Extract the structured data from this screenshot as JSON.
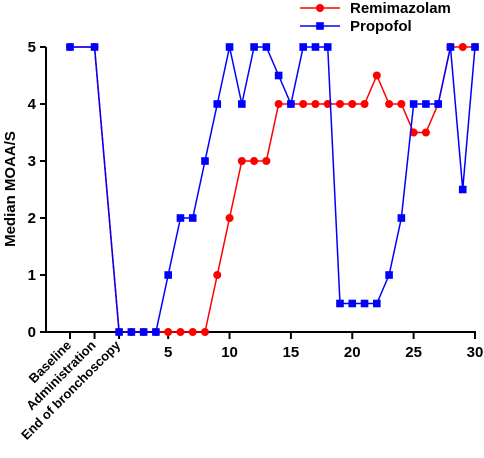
{
  "chart_data": {
    "type": "line",
    "ylabel": "Median MOAA/S",
    "xlabel": "",
    "ylim": [
      0,
      5
    ],
    "xlim": [
      -3,
      30
    ],
    "y_ticks": [
      "0",
      "1",
      "2",
      "3",
      "4",
      "5"
    ],
    "x_ticks": [
      "5",
      "10",
      "15",
      "20",
      "25",
      "30"
    ],
    "x_categories": [
      "Baseline",
      "Administration",
      "End of bronchoscopy"
    ],
    "legend_position": "top-right",
    "grid": false,
    "series": [
      {
        "name": "Remimazolam",
        "color": "#ff0000",
        "marker": "circle",
        "points": [
          {
            "x": -3,
            "y": 5
          },
          {
            "x": -1,
            "y": 5
          },
          {
            "x": 1,
            "y": 0
          },
          {
            "x": 2,
            "y": 0
          },
          {
            "x": 3,
            "y": 0
          },
          {
            "x": 4,
            "y": 0
          },
          {
            "x": 5,
            "y": 0
          },
          {
            "x": 6,
            "y": 0
          },
          {
            "x": 7,
            "y": 0
          },
          {
            "x": 8,
            "y": 0
          },
          {
            "x": 9,
            "y": 1
          },
          {
            "x": 10,
            "y": 2
          },
          {
            "x": 11,
            "y": 3
          },
          {
            "x": 12,
            "y": 3
          },
          {
            "x": 13,
            "y": 3
          },
          {
            "x": 14,
            "y": 4
          },
          {
            "x": 15,
            "y": 4
          },
          {
            "x": 16,
            "y": 4
          },
          {
            "x": 17,
            "y": 4
          },
          {
            "x": 18,
            "y": 4
          },
          {
            "x": 19,
            "y": 4
          },
          {
            "x": 20,
            "y": 4
          },
          {
            "x": 21,
            "y": 4
          },
          {
            "x": 22,
            "y": 4.5
          },
          {
            "x": 23,
            "y": 4
          },
          {
            "x": 24,
            "y": 4
          },
          {
            "x": 25,
            "y": 3.5
          },
          {
            "x": 26,
            "y": 3.5
          },
          {
            "x": 27,
            "y": 4
          },
          {
            "x": 28,
            "y": 5
          },
          {
            "x": 29,
            "y": 5
          },
          {
            "x": 30,
            "y": 5
          }
        ]
      },
      {
        "name": "Propofol",
        "color": "#0000ff",
        "marker": "square",
        "points": [
          {
            "x": -3,
            "y": 5
          },
          {
            "x": -1,
            "y": 5
          },
          {
            "x": 1,
            "y": 0
          },
          {
            "x": 2,
            "y": 0
          },
          {
            "x": 3,
            "y": 0
          },
          {
            "x": 4,
            "y": 0
          },
          {
            "x": 5,
            "y": 1
          },
          {
            "x": 6,
            "y": 2
          },
          {
            "x": 7,
            "y": 2
          },
          {
            "x": 8,
            "y": 3
          },
          {
            "x": 9,
            "y": 4
          },
          {
            "x": 10,
            "y": 5
          },
          {
            "x": 11,
            "y": 4
          },
          {
            "x": 12,
            "y": 5
          },
          {
            "x": 13,
            "y": 5
          },
          {
            "x": 14,
            "y": 4.5
          },
          {
            "x": 15,
            "y": 4
          },
          {
            "x": 16,
            "y": 5
          },
          {
            "x": 17,
            "y": 5
          },
          {
            "x": 18,
            "y": 5
          },
          {
            "x": 19,
            "y": 0.5
          },
          {
            "x": 20,
            "y": 0.5
          },
          {
            "x": 21,
            "y": 0.5
          },
          {
            "x": 22,
            "y": 0.5
          },
          {
            "x": 23,
            "y": 1
          },
          {
            "x": 24,
            "y": 2
          },
          {
            "x": 25,
            "y": 4
          },
          {
            "x": 26,
            "y": 4
          },
          {
            "x": 27,
            "y": 4
          },
          {
            "x": 28,
            "y": 5
          },
          {
            "x": 29,
            "y": 2.5
          },
          {
            "x": 30,
            "y": 5
          }
        ]
      }
    ]
  }
}
